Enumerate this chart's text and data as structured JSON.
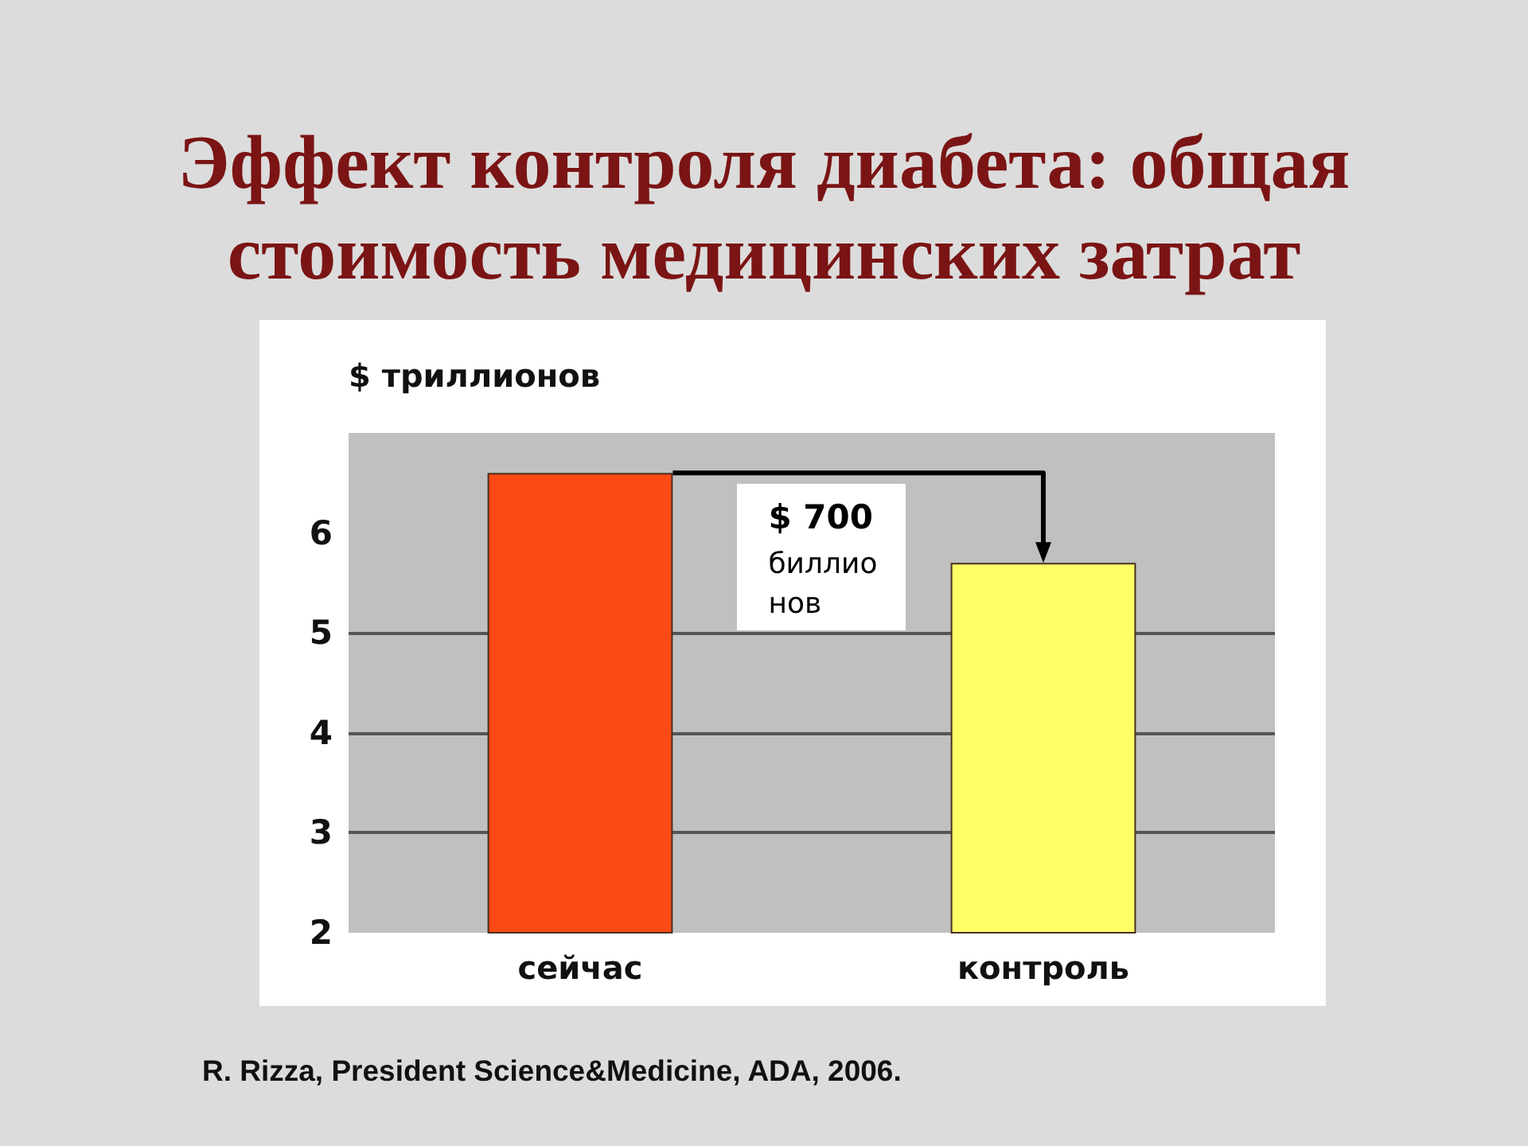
{
  "chart_data": {
    "type": "bar",
    "title": "Эффект контроля диабета: общая стоимость медицинских затрат",
    "ylabel": "$ триллионов",
    "categories": [
      "сейчас",
      "контроль"
    ],
    "values": [
      6.6,
      5.7
    ],
    "colors": [
      "#fc4a14",
      "#ffff66"
    ],
    "ylim": [
      2,
      7
    ],
    "yticks": [
      2,
      3,
      4,
      5,
      6
    ],
    "grid": "y",
    "annotations": [
      "$ 700\nбиллио\nнов",
      "R. Rizza, President Science&Medicine, ADA, 2006."
    ]
  }
}
